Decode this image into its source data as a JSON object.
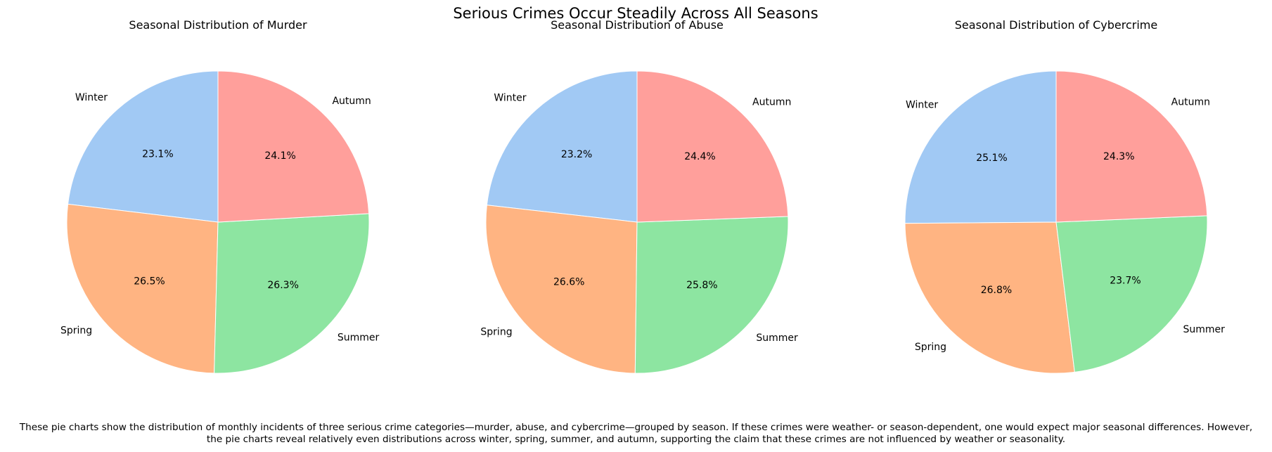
{
  "colors": {
    "Winter": "#a1c9f4",
    "Spring": "#ffb482",
    "Summer": "#8de5a1",
    "Autumn": "#ff9f9b",
    "slice_edge": "#ffffff"
  },
  "chart_data": [
    {
      "type": "pie",
      "title": "Seasonal Distribution of Murder",
      "categories": [
        "Winter",
        "Spring",
        "Summer",
        "Autumn"
      ],
      "values": [
        23.1,
        26.5,
        26.3,
        24.1
      ],
      "percent_labels": [
        "23.1%",
        "26.5%",
        "26.3%",
        "24.1%"
      ],
      "start_angle_deg": 90,
      "direction": "counterclockwise"
    },
    {
      "type": "pie",
      "title": "Seasonal Distribution of Abuse",
      "categories": [
        "Winter",
        "Spring",
        "Summer",
        "Autumn"
      ],
      "values": [
        23.2,
        26.6,
        25.8,
        24.4
      ],
      "percent_labels": [
        "23.2%",
        "26.6%",
        "25.8%",
        "24.4%"
      ],
      "start_angle_deg": 90,
      "direction": "counterclockwise"
    },
    {
      "type": "pie",
      "title": "Seasonal Distribution of Cybercrime",
      "categories": [
        "Winter",
        "Spring",
        "Summer",
        "Autumn"
      ],
      "values": [
        25.1,
        26.8,
        23.7,
        24.3
      ],
      "percent_labels": [
        "25.1%",
        "26.8%",
        "23.7%",
        "24.3%"
      ],
      "start_angle_deg": 90,
      "direction": "counterclockwise"
    }
  ],
  "figure": {
    "title": "Serious Crimes Occur Steadily Across All Seasons",
    "caption_lines": [
      "These pie charts show the distribution of monthly incidents of three serious crime categories—murder, abuse, and cybercrime—grouped by season. If these crimes were weather- or season-dependent, one would expect major seasonal differences. However,",
      "the pie charts reveal relatively even distributions across winter, spring, summer, and autumn, supporting the claim that these crimes are not influenced by weather or seasonality."
    ]
  }
}
